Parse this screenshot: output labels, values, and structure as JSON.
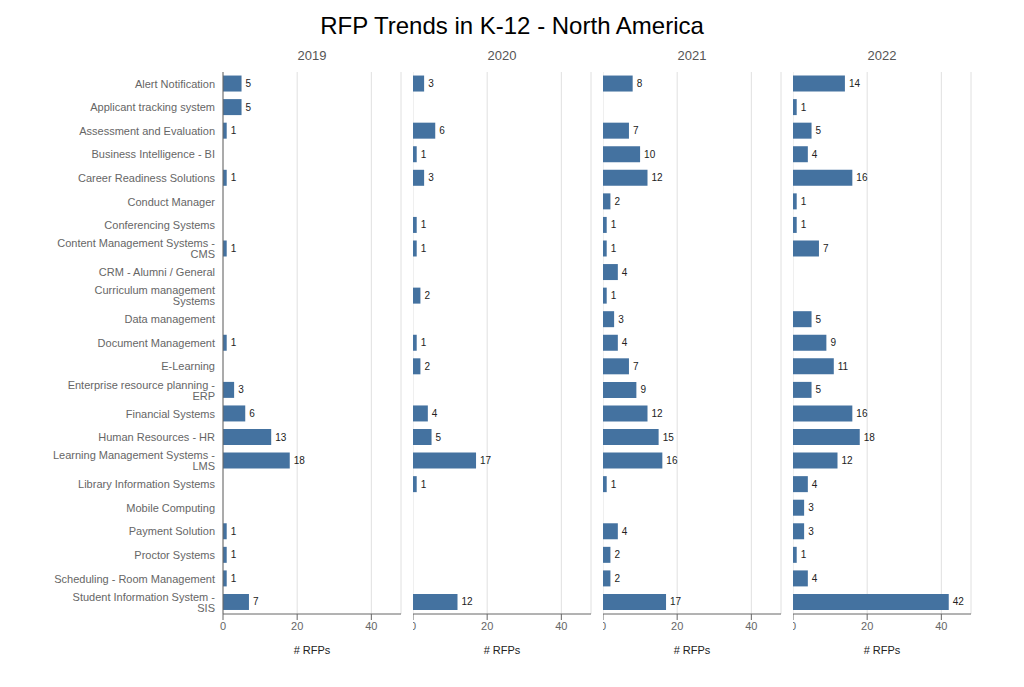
{
  "chart_data": {
    "type": "bar",
    "title": "RFP Trends in K-12 - North America",
    "orientation": "horizontal",
    "xlabel": "# RFPs",
    "xlim": [
      0,
      48
    ],
    "xticks": [
      0,
      20,
      40
    ],
    "grid": true,
    "data_labels": true,
    "categories": [
      "Alert Notification",
      "Applicant tracking system",
      "Assessment and Evaluation",
      "Business Intelligence - BI",
      "Career Readiness Solutions",
      "Conduct Manager",
      "Conferencing Systems",
      "Content Management Systems - CMS",
      "CRM - Alumni / General",
      "Curriculum management Systems",
      "Data management",
      "Document Management",
      "E-Learning",
      "Enterprise resource planning - ERP",
      "Financial Systems",
      "Human Resources - HR",
      "Learning Management Systems - LMS",
      "Library Information Systems",
      "Mobile Computing",
      "Payment Solution",
      "Proctor Systems",
      "Scheduling - Room Management",
      "Student Information System - SIS"
    ],
    "series": [
      {
        "name": "2019",
        "color": "#4472a0",
        "values": [
          5,
          5,
          1,
          0,
          1,
          0,
          0,
          1,
          0,
          0,
          0,
          1,
          0,
          3,
          6,
          13,
          18,
          0,
          0,
          1,
          1,
          1,
          7
        ],
        "value_labels": [
          "5",
          "5",
          "1",
          null,
          "1",
          null,
          null,
          "1",
          null,
          null,
          null,
          "1",
          null,
          "3",
          "6",
          "13",
          "18",
          null,
          null,
          "1",
          "1",
          "1",
          "7"
        ]
      },
      {
        "name": "2020",
        "color": "#4472a0",
        "values": [
          3,
          0,
          6,
          1,
          3,
          0,
          1,
          1,
          0,
          2,
          0,
          1,
          2,
          0,
          4,
          5,
          17,
          1,
          0,
          0,
          0,
          0,
          12
        ],
        "value_labels": [
          "3",
          null,
          "6",
          "1",
          "3",
          null,
          "1",
          "1",
          null,
          "2",
          null,
          "1",
          "2",
          null,
          "4",
          "5",
          "17",
          "1",
          null,
          null,
          null,
          null,
          "12"
        ]
      },
      {
        "name": "2021",
        "color": "#4472a0",
        "values": [
          8,
          0,
          7,
          10,
          12,
          2,
          1,
          1,
          4,
          1,
          3,
          4,
          7,
          9,
          12,
          15,
          16,
          1,
          0,
          4,
          2,
          2,
          17
        ],
        "value_labels": [
          "8",
          null,
          "7",
          "10",
          "12",
          "2",
          "1",
          "1",
          "4",
          "1",
          "3",
          "4",
          "7",
          "9",
          "12",
          "15",
          "16",
          "1",
          null,
          "4",
          "2",
          "2",
          "17"
        ]
      },
      {
        "name": "2022",
        "color": "#4472a0",
        "values": [
          14,
          1,
          5,
          4,
          16,
          1,
          1,
          7,
          0,
          0,
          5,
          9,
          11,
          5,
          16,
          18,
          12,
          4,
          3,
          3,
          1,
          4,
          42
        ],
        "value_labels": [
          "14",
          "1",
          "5",
          "4",
          "16",
          "1",
          "1",
          "7",
          null,
          null,
          "5",
          "9",
          "11",
          "5",
          "16",
          "18",
          "12",
          "4",
          "3",
          "3",
          "1",
          "4",
          "42"
        ]
      }
    ]
  }
}
